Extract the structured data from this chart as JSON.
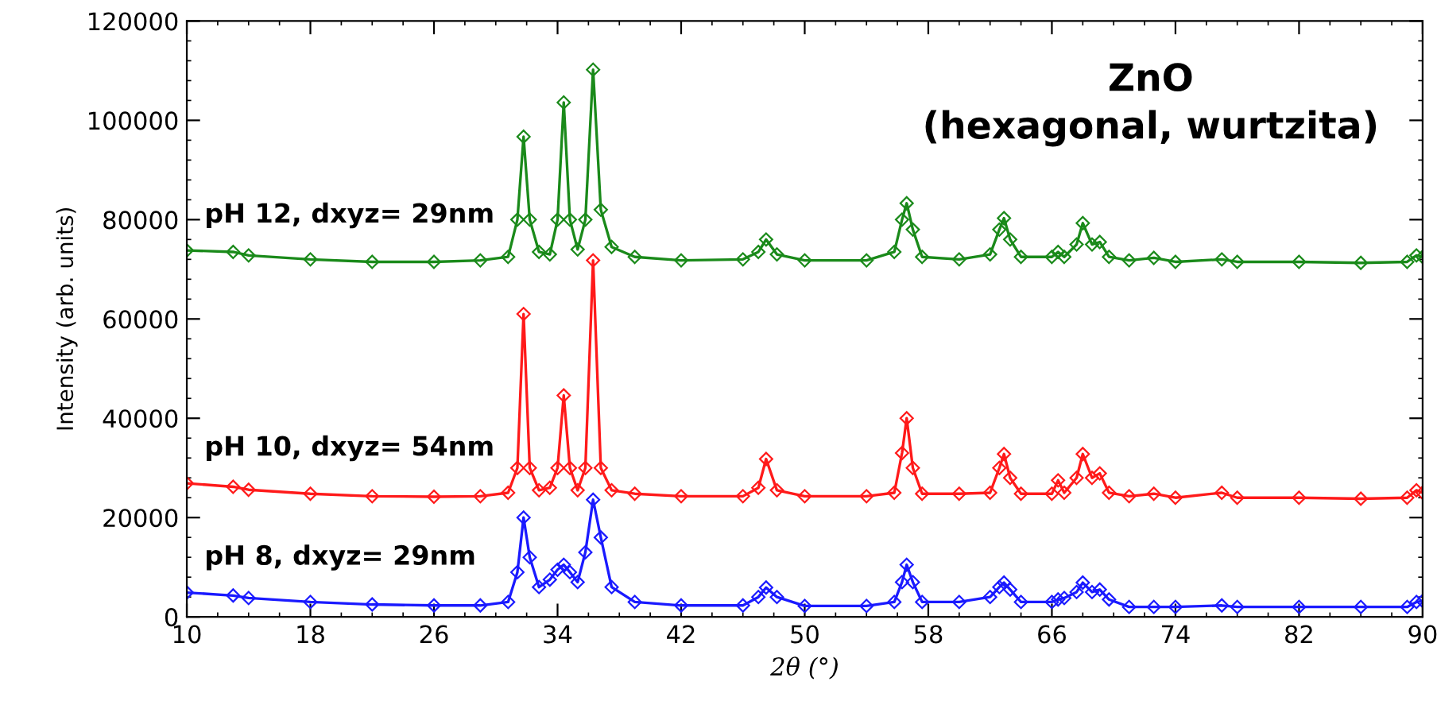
{
  "chart_data": {
    "type": "line",
    "xlabel": "2θ (°)",
    "ylabel": "Intensity (arb. units)",
    "annotations": [
      "ZnO\n(hexagonal, wurtzita)"
    ],
    "xlim": [
      10,
      90
    ],
    "xticks": [
      10,
      18,
      26,
      34,
      42,
      50,
      58,
      66,
      74,
      82,
      90
    ],
    "ylim": [
      0,
      120000
    ],
    "yticks": [
      0,
      20000,
      40000,
      60000,
      80000,
      100000,
      120000
    ],
    "grid": false,
    "legend": false,
    "marker": "diamond",
    "line_style": "solid",
    "series": [
      {
        "name": "pH 12, dxyz= 29nm",
        "color": "#1a8a1a",
        "x": [
          10,
          13,
          14,
          18,
          22,
          26,
          29,
          30.8,
          31.4,
          31.8,
          32.2,
          32.8,
          33.5,
          34.0,
          34.4,
          34.8,
          35.3,
          35.8,
          36.3,
          36.8,
          37.5,
          39,
          42,
          46,
          47,
          47.5,
          48.2,
          50,
          54,
          55.8,
          56.3,
          56.6,
          57.0,
          57.6,
          60,
          62,
          62.6,
          62.9,
          63.3,
          64,
          66,
          66.4,
          66.8,
          67.6,
          68.0,
          68.6,
          69.1,
          69.7,
          71,
          72.6,
          74,
          77,
          78,
          82,
          86,
          89,
          89.6,
          90
        ],
        "values": [
          73800,
          73500,
          72800,
          72000,
          71500,
          71500,
          71800,
          72500,
          80000,
          96700,
          80000,
          73500,
          73000,
          80000,
          103600,
          80000,
          74000,
          80000,
          110200,
          82000,
          74500,
          72500,
          71800,
          72000,
          73500,
          76000,
          73000,
          71800,
          71800,
          73500,
          80000,
          83300,
          78000,
          72500,
          72000,
          73000,
          78000,
          80300,
          76000,
          72500,
          72500,
          73500,
          72500,
          75000,
          79300,
          75000,
          75500,
          72500,
          71800,
          72300,
          71500,
          72000,
          71500,
          71500,
          71300,
          71500,
          72800,
          72500
        ]
      },
      {
        "name": "pH 10, dxyz= 54nm",
        "color": "#ff1a1a",
        "x": [
          10,
          13,
          14,
          18,
          22,
          26,
          29,
          30.8,
          31.4,
          31.8,
          32.2,
          32.8,
          33.5,
          34.0,
          34.4,
          34.8,
          35.3,
          35.8,
          36.3,
          36.8,
          37.5,
          39,
          42,
          46,
          47,
          47.5,
          48.2,
          50,
          54,
          55.8,
          56.3,
          56.6,
          57.0,
          57.6,
          60,
          62,
          62.6,
          62.9,
          63.3,
          64,
          66,
          66.4,
          66.8,
          67.6,
          68.0,
          68.6,
          69.1,
          69.7,
          71,
          72.6,
          74,
          77,
          78,
          82,
          86,
          89,
          89.6,
          90
        ],
        "values": [
          26900,
          26200,
          25600,
          24800,
          24300,
          24200,
          24300,
          25000,
          30000,
          61000,
          30000,
          25500,
          26000,
          30000,
          44600,
          30000,
          25500,
          30000,
          71800,
          30000,
          25500,
          24800,
          24300,
          24300,
          26000,
          31800,
          25500,
          24300,
          24300,
          25000,
          33000,
          40000,
          30000,
          24800,
          24800,
          25000,
          30000,
          32800,
          28000,
          24800,
          24800,
          27500,
          25000,
          28000,
          32800,
          28000,
          28900,
          25000,
          24300,
          24800,
          24000,
          25000,
          24000,
          24000,
          23800,
          24000,
          25500,
          25000
        ]
      },
      {
        "name": "pH 8, dxyz= 29nm",
        "color": "#1a1aff",
        "x": [
          10,
          13,
          14,
          18,
          22,
          26,
          29,
          30.8,
          31.4,
          31.8,
          32.2,
          32.8,
          33.5,
          34.0,
          34.4,
          34.8,
          35.3,
          35.8,
          36.3,
          36.8,
          37.5,
          39,
          42,
          46,
          47,
          47.5,
          48.2,
          50,
          54,
          55.8,
          56.3,
          56.6,
          57.0,
          57.6,
          60,
          62,
          62.6,
          62.9,
          63.3,
          64,
          66,
          66.4,
          66.8,
          67.6,
          68.0,
          68.6,
          69.1,
          69.7,
          71,
          72.6,
          74,
          77,
          78,
          82,
          86,
          89,
          89.6,
          90
        ],
        "values": [
          4900,
          4300,
          3800,
          3000,
          2500,
          2300,
          2300,
          3000,
          9000,
          20000,
          12000,
          6000,
          7500,
          9500,
          10500,
          9000,
          7000,
          13000,
          23600,
          16000,
          6000,
          3000,
          2300,
          2300,
          4000,
          5900,
          4000,
          2200,
          2200,
          3000,
          7000,
          10500,
          7000,
          3000,
          3000,
          4000,
          6000,
          6900,
          5500,
          3000,
          3000,
          3500,
          3800,
          5000,
          6900,
          5000,
          5500,
          3500,
          2000,
          2000,
          2000,
          2300,
          2000,
          2000,
          2000,
          2000,
          3000,
          3200
        ]
      }
    ]
  }
}
